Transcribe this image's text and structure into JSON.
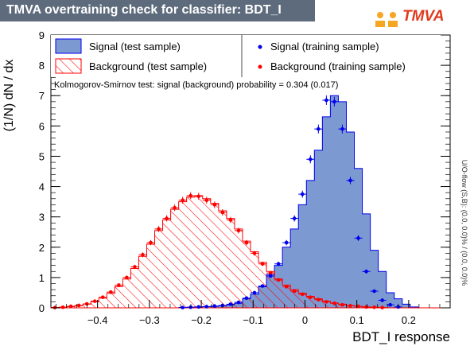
{
  "header": {
    "title": "TMVA overtraining check for classifier: BDT_I",
    "logo_text": "TMVA"
  },
  "colors": {
    "signal_fill": "#7d99d1",
    "signal_line": "#0000ee",
    "background_line": "#ff0000",
    "title_bg": "#5e6b7d"
  },
  "legend": {
    "signal_test": "Signal (test sample)",
    "background_test": "Background (test sample)",
    "signal_train": "Signal (training sample)",
    "background_train": "Background (training sample)"
  },
  "ks_text": "Kolmogorov-Smirnov test: signal (background) probability = 0.304 (0.017)",
  "overflow_text": "U/O-flow (S,B): (0.0, 0.0)% / (0.0, 0.0)%",
  "chart_data": {
    "type": "histogram",
    "xlabel": "BDT_I response",
    "ylabel": "(1/N) dN / dx",
    "xlim": [
      -0.49,
      0.28
    ],
    "ylim": [
      0,
      9
    ],
    "bin_edges_start": -0.49,
    "bin_width": 0.0154,
    "x_ticks": [
      -0.4,
      -0.3,
      -0.2,
      -0.1,
      0,
      0.1,
      0.2
    ],
    "x_tick_labels": [
      "−0.4",
      "−0.3",
      "−0.2",
      "−0.1",
      "0",
      "0.1",
      "0.2"
    ],
    "y_ticks": [
      0,
      1,
      2,
      3,
      4,
      5,
      6,
      7,
      8,
      9
    ],
    "series": [
      {
        "name": "Signal (test sample)",
        "style": "filled",
        "values": [
          0,
          0,
          0,
          0,
          0,
          0,
          0,
          0,
          0,
          0,
          0,
          0,
          0,
          0,
          0,
          0,
          0.01,
          0.02,
          0.03,
          0.04,
          0.05,
          0.07,
          0.1,
          0.15,
          0.3,
          0.45,
          0.7,
          1.1,
          1.4,
          2.0,
          2.6,
          3.4,
          4.2,
          5.2,
          6.3,
          7.0,
          6.8,
          5.8,
          4.6,
          3.1,
          1.9,
          1.2,
          0.5,
          0.3,
          0.12,
          0.03,
          0,
          0,
          0,
          0
        ]
      },
      {
        "name": "Background (test sample)",
        "style": "hatched",
        "values": [
          0.01,
          0.02,
          0.04,
          0.07,
          0.12,
          0.2,
          0.32,
          0.48,
          0.7,
          0.95,
          1.3,
          1.7,
          2.1,
          2.55,
          2.9,
          3.25,
          3.5,
          3.65,
          3.7,
          3.6,
          3.45,
          3.2,
          2.95,
          2.6,
          2.2,
          1.85,
          1.5,
          1.2,
          0.95,
          0.75,
          0.6,
          0.48,
          0.38,
          0.3,
          0.22,
          0.16,
          0.12,
          0.08,
          0.05,
          0.03,
          0.02,
          0.01,
          0,
          0,
          0,
          0,
          0,
          0,
          0,
          0
        ]
      },
      {
        "name": "Signal (training sample)",
        "style": "points",
        "values": [
          0,
          0,
          0,
          0,
          0,
          0,
          0,
          0,
          0,
          0,
          0,
          0,
          0,
          0,
          0,
          0,
          0.01,
          0.02,
          0.03,
          0.04,
          0.06,
          0.08,
          0.12,
          0.18,
          0.32,
          0.5,
          0.72,
          1.05,
          1.45,
          2.15,
          2.95,
          3.75,
          4.9,
          5.9,
          6.85,
          6.8,
          5.9,
          4.2,
          2.3,
          1.2,
          0.55,
          0.25,
          0.1,
          0.03,
          0,
          0,
          0,
          0,
          0,
          0
        ]
      },
      {
        "name": "Background (training sample)",
        "style": "points",
        "values": [
          0.01,
          0.02,
          0.05,
          0.08,
          0.13,
          0.22,
          0.35,
          0.52,
          0.75,
          1.0,
          1.35,
          1.75,
          2.15,
          2.6,
          2.95,
          3.3,
          3.55,
          3.7,
          3.68,
          3.55,
          3.4,
          3.15,
          2.9,
          2.55,
          2.15,
          1.8,
          1.45,
          1.15,
          0.92,
          0.7,
          0.55,
          0.45,
          0.35,
          0.27,
          0.2,
          0.15,
          0.1,
          0.07,
          0.05,
          0.03,
          0.02,
          0.01,
          0,
          0,
          0,
          0,
          0,
          0,
          0,
          0
        ]
      }
    ],
    "legend_position": "top"
  }
}
